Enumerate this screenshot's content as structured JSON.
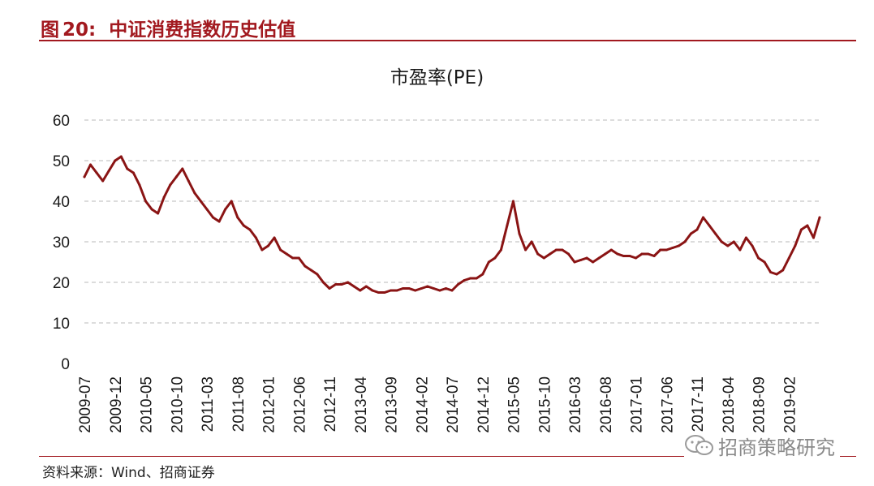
{
  "header": {
    "label": "图",
    "number": "20:",
    "title": "中证消费指数历史估值"
  },
  "source": "资料来源：Wind、招商证券",
  "watermark": {
    "text": "招商策略研究",
    "icon": "wechat-icon"
  },
  "colors": {
    "accent": "#a2191f",
    "series": "#8a1414",
    "grid": "#c8c8c8"
  },
  "chart_data": {
    "type": "line",
    "title": "市盈率(PE)",
    "xlabel": "",
    "ylabel": "",
    "ylim": [
      0,
      60
    ],
    "yticks": [
      0,
      10,
      20,
      30,
      40,
      50,
      60
    ],
    "grid": true,
    "grid_style": "dashed-horizontal",
    "x_ticks": [
      "2009-07",
      "2009-12",
      "2010-05",
      "2010-10",
      "2011-03",
      "2011-08",
      "2012-01",
      "2012-06",
      "2012-11",
      "2013-04",
      "2013-09",
      "2014-02",
      "2014-07",
      "2014-12",
      "2015-05",
      "2015-10",
      "2016-03",
      "2016-08",
      "2017-01",
      "2017-06",
      "2017-11",
      "2018-04",
      "2018-09",
      "2019-02"
    ],
    "series": [
      {
        "name": "",
        "color": "#8a1414",
        "x": [
          "2009-07",
          "2009-08",
          "2009-09",
          "2009-10",
          "2009-11",
          "2009-12",
          "2010-01",
          "2010-02",
          "2010-03",
          "2010-04",
          "2010-05",
          "2010-06",
          "2010-07",
          "2010-08",
          "2010-09",
          "2010-10",
          "2010-11",
          "2010-12",
          "2011-01",
          "2011-02",
          "2011-03",
          "2011-04",
          "2011-05",
          "2011-06",
          "2011-07",
          "2011-08",
          "2011-09",
          "2011-10",
          "2011-11",
          "2011-12",
          "2012-01",
          "2012-02",
          "2012-03",
          "2012-04",
          "2012-05",
          "2012-06",
          "2012-07",
          "2012-08",
          "2012-09",
          "2012-10",
          "2012-11",
          "2012-12",
          "2013-01",
          "2013-02",
          "2013-03",
          "2013-04",
          "2013-05",
          "2013-06",
          "2013-07",
          "2013-08",
          "2013-09",
          "2013-10",
          "2013-11",
          "2013-12",
          "2014-01",
          "2014-02",
          "2014-03",
          "2014-04",
          "2014-05",
          "2014-06",
          "2014-07",
          "2014-08",
          "2014-09",
          "2014-10",
          "2014-11",
          "2014-12",
          "2015-01",
          "2015-02",
          "2015-03",
          "2015-04",
          "2015-05",
          "2015-06",
          "2015-07",
          "2015-08",
          "2015-09",
          "2015-10",
          "2015-11",
          "2015-12",
          "2016-01",
          "2016-02",
          "2016-03",
          "2016-04",
          "2016-05",
          "2016-06",
          "2016-07",
          "2016-08",
          "2016-09",
          "2016-10",
          "2016-11",
          "2016-12",
          "2017-01",
          "2017-02",
          "2017-03",
          "2017-04",
          "2017-05",
          "2017-06",
          "2017-07",
          "2017-08",
          "2017-09",
          "2017-10",
          "2017-11",
          "2017-12",
          "2018-01",
          "2018-02",
          "2018-03",
          "2018-04",
          "2018-05",
          "2018-06",
          "2018-07",
          "2018-08",
          "2018-09",
          "2018-10",
          "2018-11",
          "2018-12",
          "2019-01",
          "2019-02",
          "2019-03",
          "2019-04",
          "2019-05",
          "2019-06",
          "2019-07"
        ],
        "values": [
          46,
          49,
          47,
          45,
          47.5,
          50,
          51,
          48,
          47,
          44,
          40,
          38,
          37,
          41,
          44,
          46,
          48,
          45,
          42,
          40,
          38,
          36,
          35,
          38,
          40,
          36,
          34,
          33,
          31,
          28,
          29,
          31,
          28,
          27,
          26,
          26,
          24,
          23,
          22,
          20,
          18.5,
          19.5,
          19.5,
          20,
          19,
          18,
          19,
          18,
          17.5,
          17.5,
          18,
          18,
          18.5,
          18.5,
          18,
          18.5,
          19,
          18.5,
          18,
          18.5,
          18,
          19.5,
          20.5,
          21,
          21,
          22,
          25,
          26,
          28,
          34,
          40,
          32,
          28,
          30,
          27,
          26,
          27,
          28,
          28,
          27,
          25,
          25.5,
          26,
          25,
          26,
          27,
          28,
          27,
          26.5,
          26.5,
          26,
          27,
          27,
          26.5,
          28,
          28,
          28.5,
          29,
          30,
          32,
          33,
          36,
          34,
          32,
          30,
          29,
          30,
          28,
          31,
          29,
          26,
          25,
          22.5,
          22,
          23,
          26,
          29,
          33,
          34,
          31,
          36
        ]
      }
    ]
  }
}
